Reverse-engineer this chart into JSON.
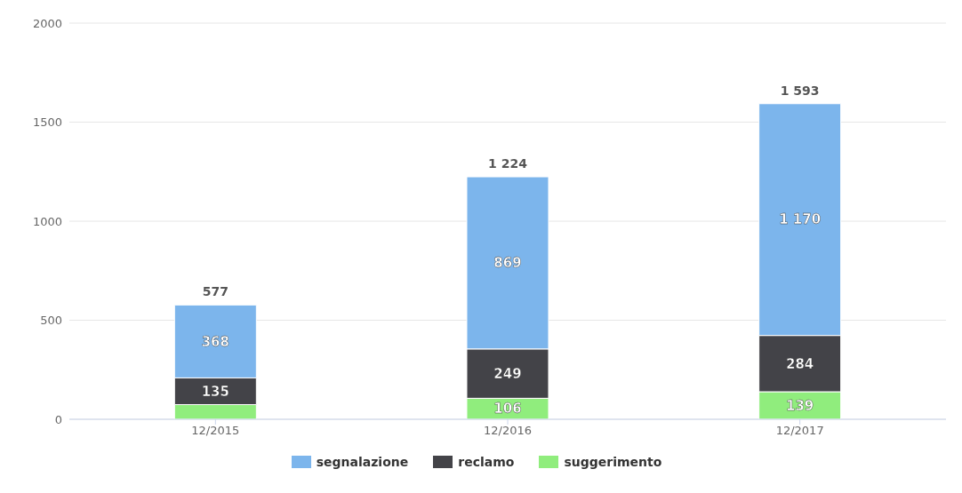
{
  "chart_data": {
    "type": "bar",
    "stacked": true,
    "categories": [
      "12/2015",
      "12/2016",
      "12/2017"
    ],
    "series": [
      {
        "name": "suggerimento",
        "color": "#90ed7d",
        "values": [
          74,
          106,
          139
        ],
        "value_labels": [
          null,
          "106",
          "139"
        ]
      },
      {
        "name": "reclamo",
        "color": "#434348",
        "values": [
          135,
          249,
          284
        ],
        "value_labels": [
          "135",
          "249",
          "284"
        ]
      },
      {
        "name": "segnalazione",
        "color": "#7cb5ec",
        "values": [
          368,
          869,
          1170
        ],
        "value_labels": [
          "368",
          "869",
          "1 170"
        ]
      }
    ],
    "totals": [
      "577",
      "1 224",
      "1 593"
    ],
    "ylim": [
      0,
      2000
    ],
    "yticks": [
      0,
      500,
      1000,
      1500,
      2000
    ],
    "grid": "y",
    "legend": "bottom"
  }
}
